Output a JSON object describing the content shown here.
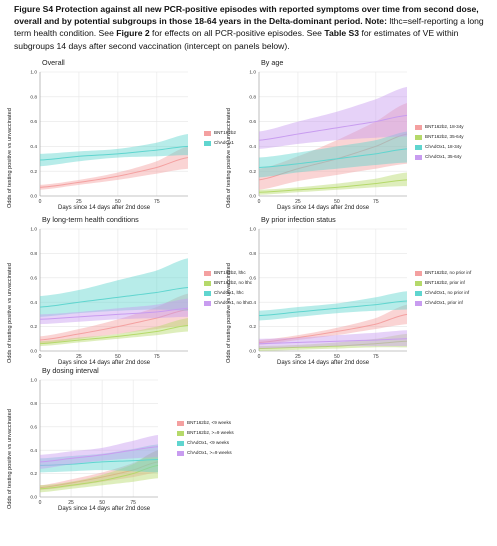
{
  "caption": {
    "title": "Figure S4 Protection against all new PCR-positive episodes with reported symptoms over time from second dose, overall and by potential subgroups in those 18-64 years in the Delta-dominant period.",
    "note_label": "Note:",
    "note_text": " lthc=self-reporting a long term health condition. See ",
    "fig2": "Figure 2",
    "note_text2": " for effects on all PCR-positive episodes. See ",
    "tableS3": "Table S3",
    "note_text3": " for estimates of VE within subgroups 14 days after second vaccination (intercept on panels below)."
  },
  "colors": {
    "pink": "#f4a0a0",
    "green": "#b5d96a",
    "teal": "#5fd5cf",
    "purple": "#c89cf0",
    "grid": "#e6e6e6"
  },
  "chart_data": [
    {
      "type": "line",
      "title": "Overall",
      "xlabel": "Days since 14 days after 2nd dose",
      "ylabel": "Odds of testing positive vs unvaccinated",
      "xlim": [
        0,
        95
      ],
      "ylim": [
        0,
        1.0
      ],
      "xticks": [
        "0",
        "25",
        "50",
        "75"
      ],
      "yticks": [
        "0.0",
        "0.2",
        "0.4",
        "0.6",
        "0.8",
        "1.0"
      ],
      "grid": true,
      "legend_position": "right",
      "series": [
        {
          "name": "BNT162b2",
          "color": "pink",
          "x": [
            0,
            25,
            50,
            75,
            95
          ],
          "y": [
            0.07,
            0.11,
            0.16,
            0.23,
            0.31
          ],
          "lo": [
            0.05,
            0.09,
            0.13,
            0.18,
            0.22
          ],
          "hi": [
            0.09,
            0.13,
            0.19,
            0.28,
            0.4
          ]
        },
        {
          "name": "ChAdOx1",
          "color": "teal",
          "x": [
            0,
            25,
            50,
            75,
            95
          ],
          "y": [
            0.29,
            0.32,
            0.34,
            0.37,
            0.4
          ],
          "lo": [
            0.24,
            0.28,
            0.31,
            0.32,
            0.33
          ],
          "hi": [
            0.34,
            0.36,
            0.38,
            0.43,
            0.5
          ]
        }
      ]
    },
    {
      "type": "line",
      "title": "By age",
      "xlabel": "Days since 14 days after 2nd dose",
      "ylabel": "Odds of testing positive vs unvaccinated",
      "xlim": [
        0,
        95
      ],
      "ylim": [
        0,
        1.0
      ],
      "xticks": [
        "0",
        "25",
        "50",
        "75"
      ],
      "yticks": [
        "0.0",
        "0.2",
        "0.4",
        "0.6",
        "0.8",
        "1.0"
      ],
      "grid": true,
      "legend_position": "right",
      "series": [
        {
          "name": "BNT162b2, 18-34y",
          "color": "pink",
          "x": [
            0,
            25,
            50,
            75,
            95
          ],
          "y": [
            0.13,
            0.22,
            0.3,
            0.4,
            0.5
          ],
          "lo": [
            0.05,
            0.12,
            0.17,
            0.22,
            0.26
          ],
          "hi": [
            0.22,
            0.32,
            0.45,
            0.6,
            0.75
          ]
        },
        {
          "name": "BNT162b2, 35-64y",
          "color": "green",
          "x": [
            0,
            25,
            50,
            75,
            95
          ],
          "y": [
            0.03,
            0.05,
            0.07,
            0.1,
            0.13
          ],
          "lo": [
            0.01,
            0.03,
            0.05,
            0.07,
            0.08
          ],
          "hi": [
            0.05,
            0.07,
            0.1,
            0.14,
            0.19
          ]
        },
        {
          "name": "ChAdOx1, 18-34y",
          "color": "teal",
          "x": [
            0,
            25,
            50,
            75,
            95
          ],
          "y": [
            0.23,
            0.26,
            0.3,
            0.34,
            0.38
          ],
          "lo": [
            0.15,
            0.19,
            0.22,
            0.25,
            0.27
          ],
          "hi": [
            0.31,
            0.35,
            0.4,
            0.45,
            0.52
          ]
        },
        {
          "name": "ChAdOx1, 35-64y",
          "color": "purple",
          "x": [
            0,
            25,
            50,
            75,
            95
          ],
          "y": [
            0.45,
            0.5,
            0.55,
            0.6,
            0.65
          ],
          "lo": [
            0.38,
            0.42,
            0.45,
            0.47,
            0.48
          ],
          "hi": [
            0.52,
            0.6,
            0.68,
            0.78,
            0.88
          ]
        }
      ]
    },
    {
      "type": "line",
      "title": "By long-term health conditions",
      "xlabel": "Days since 14 days after 2nd dose",
      "ylabel": "Odds of testing positive vs unvaccinated",
      "xlim": [
        0,
        95
      ],
      "ylim": [
        0,
        1.0
      ],
      "xticks": [
        "0",
        "25",
        "50",
        "75"
      ],
      "yticks": [
        "0.0",
        "0.2",
        "0.4",
        "0.6",
        "0.8",
        "1.0"
      ],
      "grid": true,
      "legend_position": "right",
      "series": [
        {
          "name": "BNT162b2, lthc",
          "color": "pink",
          "x": [
            0,
            25,
            50,
            75,
            95
          ],
          "y": [
            0.09,
            0.14,
            0.2,
            0.27,
            0.34
          ],
          "lo": [
            0.06,
            0.1,
            0.14,
            0.18,
            0.21
          ],
          "hi": [
            0.12,
            0.18,
            0.26,
            0.36,
            0.47
          ]
        },
        {
          "name": "BNT162b2, no lthc",
          "color": "green",
          "x": [
            0,
            25,
            50,
            75,
            95
          ],
          "y": [
            0.06,
            0.09,
            0.12,
            0.16,
            0.21
          ],
          "lo": [
            0.04,
            0.07,
            0.1,
            0.13,
            0.16
          ],
          "hi": [
            0.08,
            0.11,
            0.14,
            0.2,
            0.27
          ]
        },
        {
          "name": "ChAdOx1, lthc",
          "color": "teal",
          "x": [
            0,
            25,
            50,
            75,
            95
          ],
          "y": [
            0.36,
            0.4,
            0.44,
            0.48,
            0.52
          ],
          "lo": [
            0.28,
            0.31,
            0.33,
            0.34,
            0.33
          ],
          "hi": [
            0.45,
            0.5,
            0.58,
            0.66,
            0.76
          ]
        },
        {
          "name": "ChAdOx1, no lthc",
          "color": "purple",
          "x": [
            0,
            25,
            50,
            75,
            95
          ],
          "y": [
            0.26,
            0.28,
            0.3,
            0.32,
            0.35
          ],
          "lo": [
            0.22,
            0.24,
            0.26,
            0.27,
            0.28
          ],
          "hi": [
            0.3,
            0.32,
            0.35,
            0.38,
            0.43
          ]
        }
      ]
    },
    {
      "type": "line",
      "title": "By prior infection status",
      "xlabel": "Days since 14 days after 2nd dose",
      "ylabel": "Odds of testing positive vs unvaccinated",
      "xlim": [
        0,
        95
      ],
      "ylim": [
        0,
        1.0
      ],
      "xticks": [
        "0",
        "25",
        "50",
        "75"
      ],
      "yticks": [
        "0.0",
        "0.2",
        "0.4",
        "0.6",
        "0.8",
        "1.0"
      ],
      "grid": true,
      "legend_position": "right",
      "series": [
        {
          "name": "BNT162b2, no prior inf",
          "color": "pink",
          "x": [
            0,
            25,
            50,
            75,
            95
          ],
          "y": [
            0.07,
            0.11,
            0.16,
            0.22,
            0.3
          ],
          "lo": [
            0.05,
            0.09,
            0.13,
            0.18,
            0.22
          ],
          "hi": [
            0.09,
            0.13,
            0.19,
            0.27,
            0.38
          ]
        },
        {
          "name": "BNT162b2, prior inf",
          "color": "green",
          "x": [
            0,
            25,
            50,
            75,
            95
          ],
          "y": [
            0.02,
            0.03,
            0.04,
            0.06,
            0.08
          ],
          "lo": [
            0.0,
            0.01,
            0.02,
            0.03,
            0.03
          ],
          "hi": [
            0.04,
            0.05,
            0.07,
            0.1,
            0.14
          ]
        },
        {
          "name": "ChAdOx1, no prior inf",
          "color": "teal",
          "x": [
            0,
            25,
            50,
            75,
            95
          ],
          "y": [
            0.29,
            0.32,
            0.35,
            0.38,
            0.41
          ],
          "lo": [
            0.25,
            0.28,
            0.31,
            0.33,
            0.34
          ],
          "hi": [
            0.33,
            0.36,
            0.39,
            0.44,
            0.49
          ]
        },
        {
          "name": "ChAdOx1, prior inf",
          "color": "purple",
          "x": [
            0,
            25,
            50,
            75,
            95
          ],
          "y": [
            0.06,
            0.07,
            0.08,
            0.09,
            0.1
          ],
          "lo": [
            0.02,
            0.03,
            0.04,
            0.04,
            0.04
          ],
          "hi": [
            0.1,
            0.11,
            0.13,
            0.15,
            0.17
          ]
        }
      ]
    },
    {
      "type": "line",
      "title": "By dosing interval",
      "xlabel": "Days since 14 days after 2nd dose",
      "ylabel": "Odds of testing positive vs unvaccinated",
      "xlim": [
        0,
        95
      ],
      "ylim": [
        0,
        1.0
      ],
      "xticks": [
        "0",
        "25",
        "50",
        "75"
      ],
      "yticks": [
        "0.0",
        "0.2",
        "0.4",
        "0.6",
        "0.8",
        "1.0"
      ],
      "grid": true,
      "legend_position": "right",
      "series": [
        {
          "name": "BNT162b2, <9 weeks",
          "color": "pink",
          "x": [
            0,
            25,
            50,
            75,
            95
          ],
          "y": [
            0.08,
            0.12,
            0.17,
            0.23,
            0.3
          ],
          "lo": [
            0.06,
            0.09,
            0.13,
            0.17,
            0.21
          ],
          "hi": [
            0.1,
            0.15,
            0.21,
            0.29,
            0.4
          ]
        },
        {
          "name": "BNT162b2, >=9 weeks",
          "color": "green",
          "x": [
            0,
            25,
            50,
            75,
            95
          ],
          "y": [
            0.07,
            0.1,
            0.14,
            0.2,
            0.27
          ],
          "lo": [
            0.04,
            0.07,
            0.1,
            0.13,
            0.16
          ],
          "hi": [
            0.1,
            0.13,
            0.19,
            0.28,
            0.4
          ]
        },
        {
          "name": "ChAdOx1, <9 weeks",
          "color": "teal",
          "x": [
            0,
            25,
            50,
            75,
            95
          ],
          "y": [
            0.27,
            0.28,
            0.3,
            0.31,
            0.32
          ],
          "lo": [
            0.21,
            0.22,
            0.23,
            0.22,
            0.21
          ],
          "hi": [
            0.33,
            0.35,
            0.37,
            0.41,
            0.45
          ]
        },
        {
          "name": "ChAdOx1, >=9 weeks",
          "color": "purple",
          "x": [
            0,
            25,
            50,
            75,
            95
          ],
          "y": [
            0.3,
            0.33,
            0.36,
            0.4,
            0.43
          ],
          "lo": [
            0.24,
            0.28,
            0.31,
            0.33,
            0.34
          ],
          "hi": [
            0.36,
            0.39,
            0.42,
            0.48,
            0.53
          ]
        }
      ]
    }
  ]
}
